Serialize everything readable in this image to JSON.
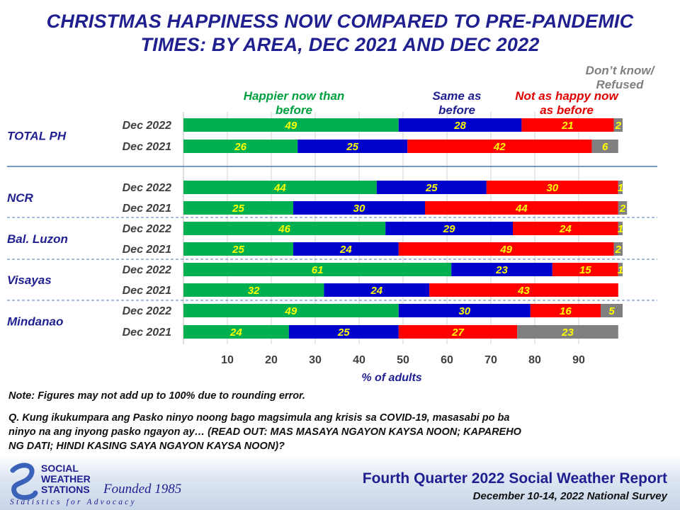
{
  "title_line1": "CHRISTMAS HAPPINESS NOW COMPARED TO PRE-PANDEMIC",
  "title_line2": "TIMES: BY AREA, DEC 2021 AND DEC 2022",
  "legend": {
    "happier": "Happier now than before",
    "same": "Same as before",
    "not_happy": "Not as happy now as before",
    "dont_know": "Don’t know/ Refused"
  },
  "colors": {
    "happier": "#00b050",
    "same": "#0000cc",
    "not_happy": "#ff0000",
    "dont_know": "#808080",
    "bar_label": "#ffff00",
    "group_label": "#1f1f8f"
  },
  "chart_data": {
    "type": "bar",
    "orientation": "horizontal-stacked",
    "xlabel": "% of adults",
    "xlim": [
      0,
      100
    ],
    "xticks": [
      10,
      20,
      30,
      40,
      50,
      60,
      70,
      80,
      90
    ],
    "groups": [
      {
        "name": "TOTAL PH",
        "rows": [
          {
            "label": "Dec 2022",
            "values": [
              49,
              28,
              21,
              2
            ]
          },
          {
            "label": "Dec 2021",
            "values": [
              26,
              25,
              42,
              6
            ]
          }
        ]
      },
      {
        "name": "NCR",
        "rows": [
          {
            "label": "Dec 2022",
            "values": [
              44,
              25,
              30,
              1
            ]
          },
          {
            "label": "Dec 2021",
            "values": [
              25,
              30,
              44,
              2
            ]
          }
        ]
      },
      {
        "name": "Bal. Luzon",
        "rows": [
          {
            "label": "Dec 2022",
            "values": [
              46,
              29,
              24,
              1
            ]
          },
          {
            "label": "Dec 2021",
            "values": [
              25,
              24,
              49,
              2
            ]
          }
        ]
      },
      {
        "name": "Visayas",
        "rows": [
          {
            "label": "Dec 2022",
            "values": [
              61,
              23,
              15,
              1
            ]
          },
          {
            "label": "Dec 2021",
            "values": [
              32,
              24,
              43,
              0
            ]
          }
        ]
      },
      {
        "name": "Mindanao",
        "rows": [
          {
            "label": "Dec 2022",
            "values": [
              49,
              30,
              16,
              5
            ]
          },
          {
            "label": "Dec 2021",
            "values": [
              24,
              25,
              27,
              23
            ]
          }
        ]
      }
    ],
    "series": [
      {
        "name": "Happier now than before"
      },
      {
        "name": "Same as before"
      },
      {
        "name": "Not as happy now as before"
      },
      {
        "name": "Don’t know/ Refused"
      }
    ]
  },
  "note": "Note: Figures may not add up to 100% due to rounding error.",
  "question_line1": "Q. Kung ikukumpara ang Pasko ninyo noong bago magsimula ang krisis sa COVID-19, masasabi po ba",
  "question_line2": "ninyo na ang inyong pasko ngayon ay… (READ OUT: MAS MASAYA NGAYON KAYSA NOON; KAPAREHO",
  "question_line3": "NG DATI; HINDI KASING SAYA NGAYON KAYSA NOON)?",
  "footer": {
    "logo_line1": "SOCIAL",
    "logo_line2": "WEATHER",
    "logo_line3": "STATIONS",
    "founded": "Founded 1985",
    "tagline": "Statistics for Advocacy",
    "report_title": "Fourth Quarter 2022 Social Weather Report",
    "report_subtitle": "December 10-14, 2022 National Survey"
  }
}
